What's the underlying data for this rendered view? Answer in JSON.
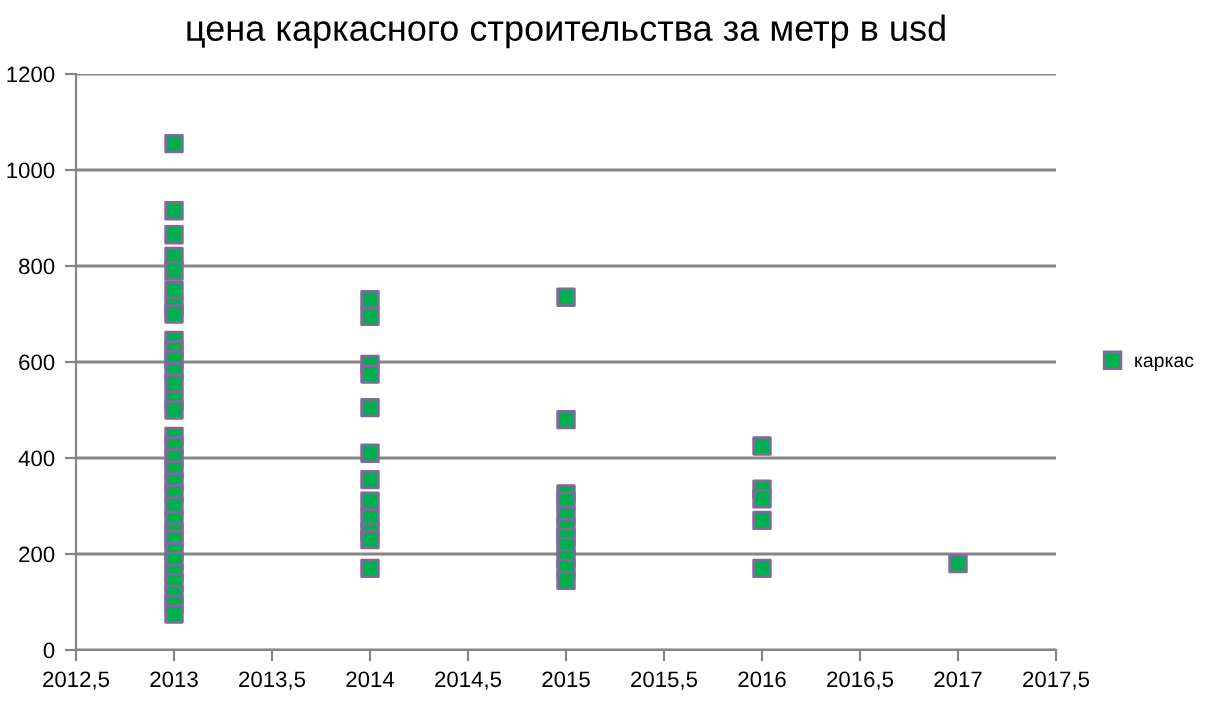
{
  "chart_data": {
    "type": "scatter",
    "title": "цена каркасного строительства за метр в usd",
    "series": [
      {
        "name": "каркас",
        "color": "#00b050",
        "x": [
          2013,
          2013,
          2013,
          2013,
          2013,
          2013,
          2013,
          2013,
          2013,
          2013,
          2013,
          2013,
          2013,
          2013,
          2013,
          2013,
          2013,
          2013,
          2013,
          2013,
          2013,
          2013,
          2013,
          2013,
          2013,
          2013,
          2013,
          2013,
          2013,
          2013,
          2013,
          2013,
          2014,
          2014,
          2014,
          2014,
          2014,
          2014,
          2014,
          2014,
          2014,
          2014,
          2014,
          2014,
          2015,
          2015,
          2015,
          2015,
          2015,
          2015,
          2015,
          2015,
          2015,
          2015,
          2015,
          2016,
          2016,
          2016,
          2016,
          2016,
          2017
        ],
        "values": [
          1055,
          915,
          865,
          820,
          790,
          750,
          715,
          700,
          645,
          625,
          605,
          580,
          555,
          520,
          500,
          445,
          425,
          400,
          375,
          350,
          325,
          300,
          270,
          245,
          230,
          205,
          185,
          160,
          140,
          115,
          95,
          75,
          730,
          695,
          595,
          575,
          505,
          410,
          355,
          310,
          275,
          245,
          230,
          170,
          735,
          480,
          325,
          310,
          280,
          255,
          235,
          215,
          190,
          170,
          145,
          425,
          335,
          315,
          270,
          170,
          180
        ]
      }
    ],
    "xlim": [
      2012.5,
      2017.5
    ],
    "xticks": [
      {
        "value": 2012.5,
        "label": "2012,5"
      },
      2013,
      {
        "value": 2013.5,
        "label": "2013,5"
      },
      2014,
      {
        "value": 2014.5,
        "label": "2014,5"
      },
      2015,
      {
        "value": 2015.5,
        "label": "2015,5"
      },
      2016,
      {
        "value": 2016.5,
        "label": "2016,5"
      },
      2017,
      {
        "value": 2017.5,
        "label": "2017,5"
      }
    ],
    "ylim": [
      0,
      1200
    ],
    "yticks": [
      0,
      200,
      400,
      600,
      800,
      1000,
      1200
    ],
    "grid": "y",
    "legend": "right",
    "marker": "square"
  }
}
